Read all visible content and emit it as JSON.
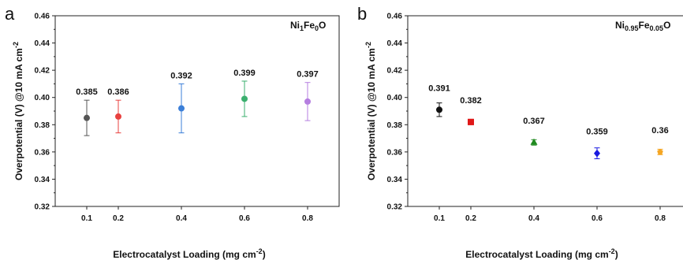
{
  "chart_data": [
    {
      "type": "scatter",
      "panel_label": "a",
      "annotation": {
        "parts": [
          [
            "Ni",
            ""
          ],
          [
            "1",
            "sub"
          ],
          [
            "Fe",
            ""
          ],
          [
            "0",
            "sub"
          ],
          [
            "O",
            ""
          ]
        ]
      },
      "xlabel": "Electrocatalyst Loading (mg cm",
      "xlabel_sup": "-2",
      "xlabel_end": ")",
      "ylabel": "Overpotential (V) @10 mA cm",
      "ylabel_sup": "-2",
      "xlim": [
        0.0,
        0.9
      ],
      "ylim": [
        0.32,
        0.46
      ],
      "x_ticks": [
        "0.1",
        "0.2",
        "0.4",
        "0.6",
        "0.8"
      ],
      "y_ticks": [
        "0.32",
        "0.34",
        "0.36",
        "0.38",
        "0.40",
        "0.42",
        "0.44",
        "0.46"
      ],
      "points": [
        {
          "x": 0.1,
          "y": 0.385,
          "err": 0.013,
          "label": "0.385",
          "color": "#555555",
          "marker": "circle"
        },
        {
          "x": 0.2,
          "y": 0.386,
          "err": 0.012,
          "label": "0.386",
          "color": "#e8413f",
          "marker": "circle"
        },
        {
          "x": 0.4,
          "y": 0.392,
          "err": 0.018,
          "label": "0.392",
          "color": "#3b7fd8",
          "marker": "circle"
        },
        {
          "x": 0.6,
          "y": 0.399,
          "err": 0.013,
          "label": "0.399",
          "color": "#3aaf6e",
          "marker": "circle"
        },
        {
          "x": 0.8,
          "y": 0.397,
          "err": 0.014,
          "label": "0.397",
          "color": "#b57ee0",
          "marker": "circle"
        }
      ]
    },
    {
      "type": "scatter",
      "panel_label": "b",
      "annotation": {
        "parts": [
          [
            "Ni",
            ""
          ],
          [
            "0.95",
            "sub"
          ],
          [
            "Fe",
            ""
          ],
          [
            "0.05",
            "sub"
          ],
          [
            "O",
            ""
          ]
        ]
      },
      "xlabel": "Electrocatalyst Loading (mg cm",
      "xlabel_sup": "-2",
      "xlabel_end": ")",
      "ylabel": "Overpotential (V) @10 mA cm",
      "ylabel_sup": "-2",
      "xlim": [
        0.0,
        0.9
      ],
      "ylim": [
        0.32,
        0.46
      ],
      "x_ticks": [
        "0.1",
        "0.2",
        "0.4",
        "0.6",
        "0.8"
      ],
      "y_ticks": [
        "0.32",
        "0.34",
        "0.36",
        "0.38",
        "0.40",
        "0.42",
        "0.44",
        "0.46"
      ],
      "points": [
        {
          "x": 0.1,
          "y": 0.391,
          "err": 0.005,
          "label": "0.391",
          "color": "#111111",
          "marker": "circle"
        },
        {
          "x": 0.2,
          "y": 0.382,
          "err": 0.002,
          "label": "0.382",
          "color": "#e01818",
          "marker": "square"
        },
        {
          "x": 0.4,
          "y": 0.367,
          "err": 0.002,
          "label": "0.367",
          "color": "#1f8a1f",
          "marker": "triangle"
        },
        {
          "x": 0.6,
          "y": 0.359,
          "err": 0.004,
          "label": "0.359",
          "color": "#1a1ae0",
          "marker": "diamond"
        },
        {
          "x": 0.8,
          "y": 0.36,
          "err": 0.002,
          "label": "0.36",
          "color": "#f5a623",
          "marker": "pentagon"
        }
      ]
    }
  ]
}
